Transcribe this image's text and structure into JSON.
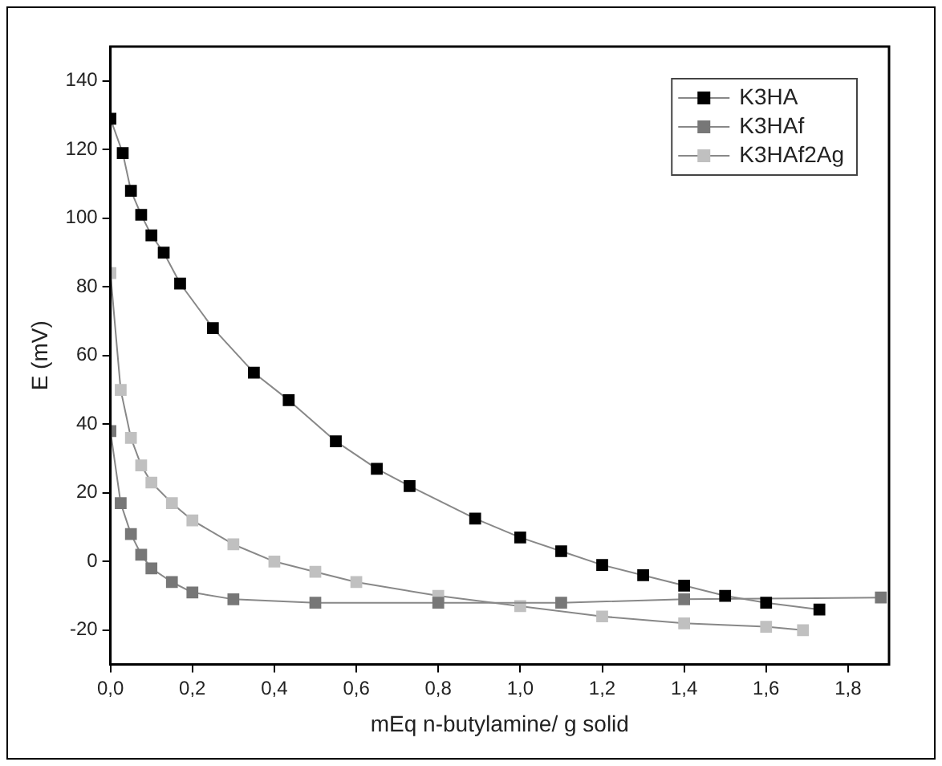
{
  "chart_data": {
    "type": "line",
    "xlabel": "mEq n-butylamine/ g solid",
    "ylabel": "E (mV)",
    "xlim": [
      0,
      1.9
    ],
    "ylim": [
      -30,
      150
    ],
    "xticks": [
      {
        "value": 0,
        "label": "0,0"
      },
      {
        "value": 0.2,
        "label": "0,2"
      },
      {
        "value": 0.4,
        "label": "0,4"
      },
      {
        "value": 0.6,
        "label": "0,6"
      },
      {
        "value": 0.8,
        "label": "0,8"
      },
      {
        "value": 1.0,
        "label": "1,0"
      },
      {
        "value": 1.2,
        "label": "1,2"
      },
      {
        "value": 1.4,
        "label": "1,4"
      },
      {
        "value": 1.6,
        "label": "1,6"
      },
      {
        "value": 1.8,
        "label": "1,8"
      }
    ],
    "yticks": [
      -20,
      0,
      20,
      40,
      60,
      80,
      100,
      120,
      140
    ],
    "grid": false,
    "legend": "top right",
    "marker": "square",
    "line_style": "solid",
    "series": [
      {
        "name": "K3HA",
        "color": "#000000",
        "x": [
          0,
          0.03,
          0.05,
          0.075,
          0.1,
          0.13,
          0.17,
          0.25,
          0.35,
          0.435,
          0.55,
          0.65,
          0.73,
          0.89,
          1.0,
          1.1,
          1.2,
          1.3,
          1.4,
          1.5,
          1.6,
          1.73
        ],
        "values": [
          129,
          119,
          108,
          101,
          95,
          90,
          81,
          68,
          55,
          47,
          35,
          27,
          22,
          12.5,
          7,
          3,
          -1,
          -4,
          -7,
          -10,
          -12,
          -14
        ]
      },
      {
        "name": "K3HAf",
        "color": "#777777",
        "x": [
          0,
          0.025,
          0.05,
          0.075,
          0.1,
          0.15,
          0.2,
          0.3,
          0.5,
          0.8,
          1.1,
          1.4,
          1.88
        ],
        "values": [
          38,
          17,
          8,
          2,
          -2,
          -6,
          -9,
          -11,
          -12,
          -12,
          -12,
          -11,
          -10.5
        ]
      },
      {
        "name": "K3HAf2Ag",
        "color": "#c0c0c0",
        "x": [
          0,
          0.025,
          0.05,
          0.075,
          0.1,
          0.15,
          0.2,
          0.3,
          0.4,
          0.5,
          0.6,
          0.8,
          1.0,
          1.2,
          1.4,
          1.6,
          1.69
        ],
        "values": [
          84,
          50,
          36,
          28,
          23,
          17,
          12,
          5,
          0,
          -3,
          -6,
          -10,
          -13,
          -16,
          -18,
          -19,
          -20
        ]
      }
    ]
  }
}
